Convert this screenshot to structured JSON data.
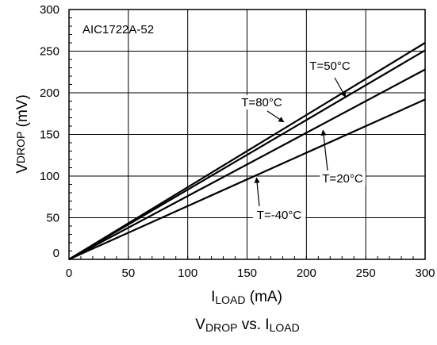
{
  "chart_data": {
    "type": "line",
    "title": "AIC1722A-52",
    "caption": {
      "main": "V",
      "main_sub": "DROP",
      "mid": " vs. I",
      "mid_sub": "LOAD"
    },
    "xlabel": {
      "main": "I",
      "sub": "LOAD",
      "unit": " (mA)"
    },
    "ylabel": {
      "main": "V",
      "sub": "DROP",
      "unit": " (mV)"
    },
    "xlim": [
      0,
      300
    ],
    "ylim": [
      0,
      300
    ],
    "xticks": [
      "0",
      "50",
      "100",
      "150",
      "200",
      "250",
      "300"
    ],
    "yticks": [
      "0",
      "50",
      "100",
      "150",
      "200",
      "250",
      "300"
    ],
    "grid": true,
    "series": [
      {
        "name": "T=80°C",
        "x": [
          0,
          300
        ],
        "y": [
          0,
          260
        ]
      },
      {
        "name": "T=50°C",
        "x": [
          0,
          300
        ],
        "y": [
          0,
          251
        ]
      },
      {
        "name": "T=20°C",
        "x": [
          0,
          300
        ],
        "y": [
          0,
          228
        ]
      },
      {
        "name": "T=-40°C",
        "x": [
          0,
          300
        ],
        "y": [
          0,
          192
        ]
      }
    ],
    "annotations": [
      {
        "text": "T=50°C",
        "series": "T=50°C",
        "target": [
          233,
          195
        ]
      },
      {
        "text": "T=80°C",
        "series": "T=80°C",
        "target": [
          181,
          165
        ]
      },
      {
        "text": "T=20°C",
        "series": "T=20°C",
        "target": [
          214,
          155
        ]
      },
      {
        "text": "T=-40°C",
        "series": "T=-40°C",
        "target": [
          158,
          98
        ]
      }
    ]
  }
}
